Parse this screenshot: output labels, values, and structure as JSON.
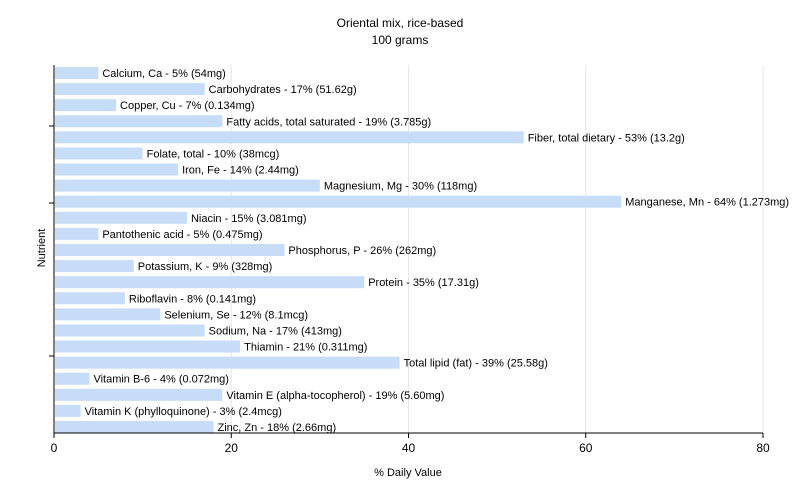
{
  "chart_data": {
    "type": "bar",
    "orientation": "horizontal",
    "title": "Oriental mix, rice-based",
    "subtitle": "100 grams",
    "xlabel": "% Daily Value",
    "ylabel": "Nutrient",
    "xlim": [
      0,
      80
    ],
    "xticks": [
      "0",
      "20",
      "40",
      "60",
      "80"
    ],
    "grid": true,
    "bar_color": "#c6dcf7",
    "bars": [
      {
        "label": "Calcium, Ca - 5% (54mg)",
        "value": 5
      },
      {
        "label": "Carbohydrates - 17% (51.62g)",
        "value": 17
      },
      {
        "label": "Copper, Cu - 7% (0.134mg)",
        "value": 7
      },
      {
        "label": "Fatty acids, total saturated - 19% (3.785g)",
        "value": 19
      },
      {
        "label": "Fiber, total dietary - 53% (13.2g)",
        "value": 53
      },
      {
        "label": "Folate, total - 10% (38mcg)",
        "value": 10
      },
      {
        "label": "Iron, Fe - 14% (2.44mg)",
        "value": 14
      },
      {
        "label": "Magnesium, Mg - 30% (118mg)",
        "value": 30
      },
      {
        "label": "Manganese, Mn - 64% (1.273mg)",
        "value": 64
      },
      {
        "label": "Niacin - 15% (3.081mg)",
        "value": 15
      },
      {
        "label": "Pantothenic acid - 5% (0.475mg)",
        "value": 5
      },
      {
        "label": "Phosphorus, P - 26% (262mg)",
        "value": 26
      },
      {
        "label": "Potassium, K - 9% (328mg)",
        "value": 9
      },
      {
        "label": "Protein - 35% (17.31g)",
        "value": 35
      },
      {
        "label": "Riboflavin - 8% (0.141mg)",
        "value": 8
      },
      {
        "label": "Selenium, Se - 12% (8.1mcg)",
        "value": 12
      },
      {
        "label": "Sodium, Na - 17% (413mg)",
        "value": 17
      },
      {
        "label": "Thiamin - 21% (0.311mg)",
        "value": 21
      },
      {
        "label": "Total lipid (fat) - 39% (25.58g)",
        "value": 39
      },
      {
        "label": "Vitamin B-6 - 4% (0.072mg)",
        "value": 4
      },
      {
        "label": "Vitamin E (alpha-tocopherol) - 19% (5.60mg)",
        "value": 19
      },
      {
        "label": "Vitamin K (phylloquinone) - 3% (2.4mcg)",
        "value": 3
      },
      {
        "label": "Zinc, Zn - 18% (2.66mg)",
        "value": 18
      }
    ]
  }
}
